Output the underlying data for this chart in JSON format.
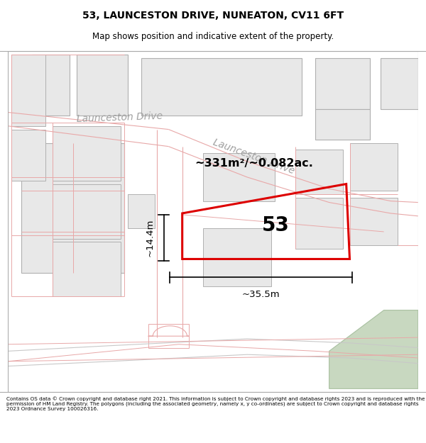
{
  "title_line1": "53, LAUNCESTON DRIVE, NUNEATON, CV11 6FT",
  "title_line2": "Map shows position and indicative extent of the property.",
  "footer_text": "Contains OS data © Crown copyright and database right 2021. This information is subject to Crown copyright and database rights 2023 and is reproduced with the permission of HM Land Registry. The polygons (including the associated geometry, namely x, y co-ordinates) are subject to Crown copyright and database rights 2023 Ordnance Survey 100026316.",
  "area_text": "~331m²/~0.082ac.",
  "number_text": "53",
  "dim_width": "~35.5m",
  "dim_height": "~14.4m",
  "street_name1": "Launceston Drive",
  "street_name2": "Launceston Drive",
  "map_bg": "#ffffff",
  "building_fill": "#e8e8e8",
  "building_edge": "#b0b0b0",
  "road_line_color": "#e8a8a8",
  "road_fill": "#ffffff",
  "red_line_color": "#dd0000",
  "green_area_color": "#c8d8c0",
  "green_area_edge": "#a8c0a0",
  "dim_line_color": "#000000",
  "text_color": "#000000",
  "street_color": "#a0a0a0"
}
